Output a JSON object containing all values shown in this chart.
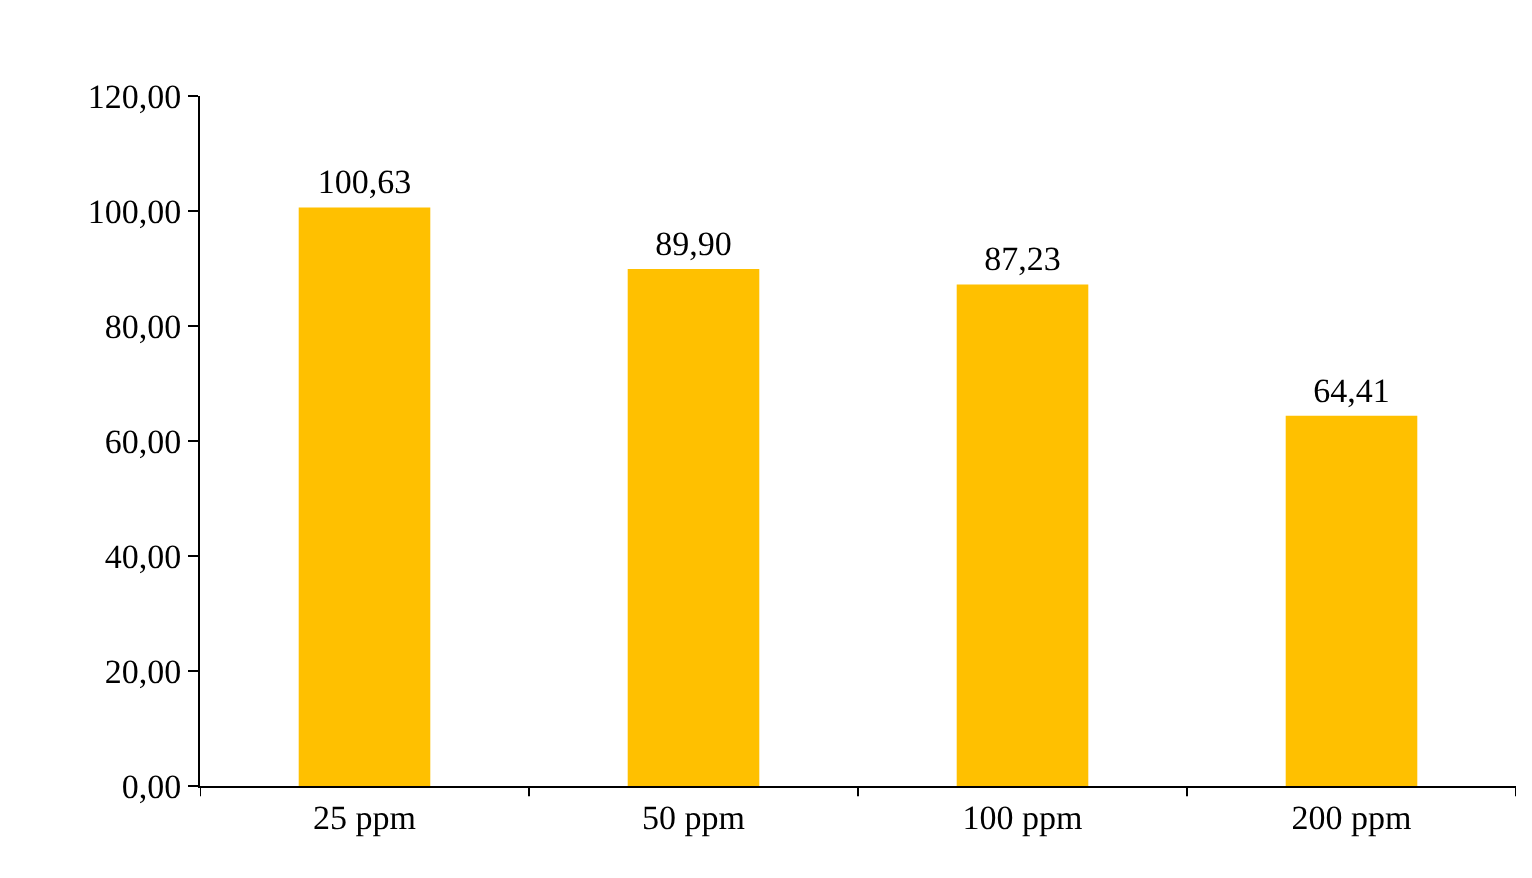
{
  "chart_data": {
    "type": "bar",
    "categories": [
      "25 ppm",
      "50 ppm",
      "100 ppm",
      "200 ppm"
    ],
    "values": [
      100.63,
      89.9,
      87.23,
      64.41
    ],
    "value_labels": [
      "100,63",
      "89,90",
      "87,23",
      "64,41"
    ],
    "color": "#ffc000",
    "ylim": [
      0,
      120
    ],
    "yticks": [
      {
        "value": 0,
        "label": "0,00"
      },
      {
        "value": 20,
        "label": "20,00"
      },
      {
        "value": 40,
        "label": "40,00"
      },
      {
        "value": 60,
        "label": "60,00"
      },
      {
        "value": 80,
        "label": "80,00"
      },
      {
        "value": 100,
        "label": "100,00"
      },
      {
        "value": 120,
        "label": "120,00"
      }
    ],
    "grid": false
  }
}
